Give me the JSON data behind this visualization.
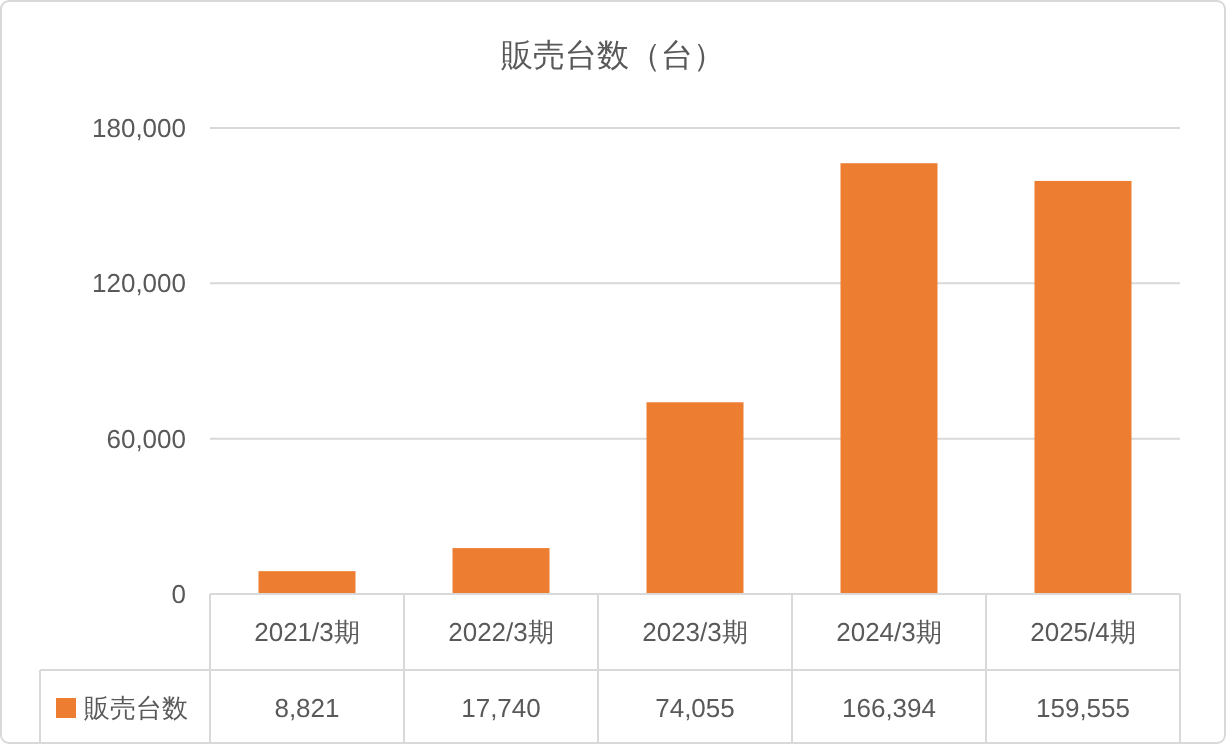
{
  "chart_data": {
    "type": "bar",
    "title": "販売台数（台）",
    "categories": [
      "2021/3期",
      "2022/3期",
      "2023/3期",
      "2024/3期",
      "2025/4期"
    ],
    "series": [
      {
        "name": "販売台数",
        "color": "#ed7d31",
        "values": [
          8821,
          17740,
          74055,
          166394,
          159555
        ],
        "value_labels": [
          "8,821",
          "17,740",
          "74,055",
          "166,394",
          "159,555"
        ]
      }
    ],
    "ylim": [
      0,
      180000
    ],
    "yticks": [
      {
        "value": 0,
        "label": "0"
      },
      {
        "value": 60000,
        "label": "60,000"
      },
      {
        "value": 120000,
        "label": "120,000"
      },
      {
        "value": 180000,
        "label": "180,000"
      }
    ],
    "grid": "y",
    "legend": "bottom"
  }
}
